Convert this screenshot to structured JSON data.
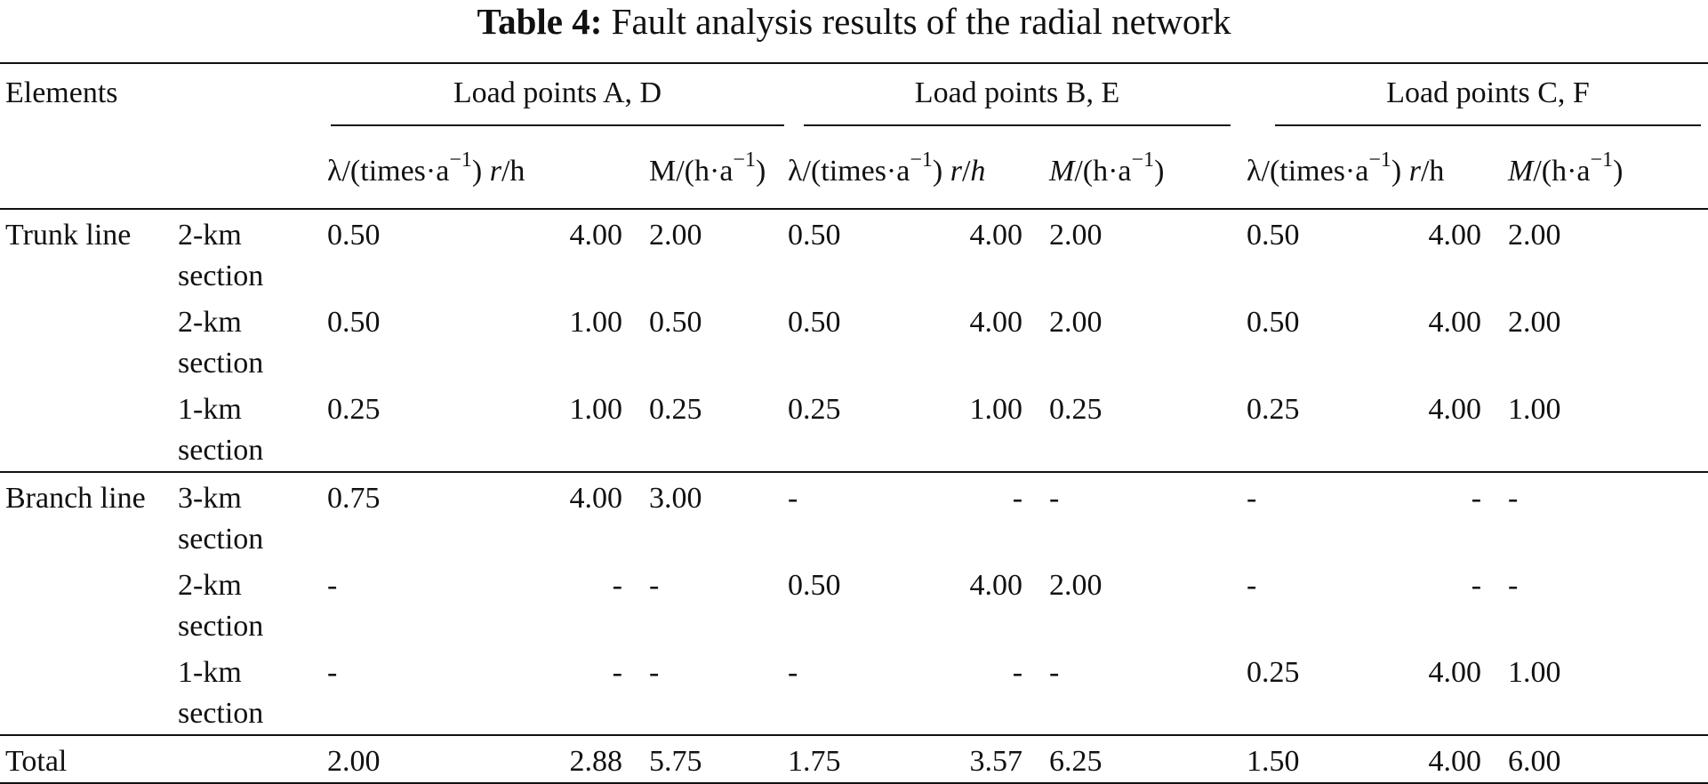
{
  "caption": {
    "label": "Table 4:",
    "text": "Fault analysis results of the radial network"
  },
  "header": {
    "elements": "Elements",
    "groups": [
      "Load points A, D",
      "Load points B, E",
      "Load points C, F"
    ],
    "sub": {
      "lambda_base": "λ/(times·a",
      "exp": "−1",
      "close": ")",
      "r": "r",
      "r_unit": "/h",
      "m": "M",
      "m_unit": "/(h·a",
      "h_italic": "h"
    }
  },
  "sections": [
    {
      "name": "Trunk line",
      "rows": [
        {
          "element": "2-km section",
          "values": [
            "0.50",
            "4.00",
            "2.00",
            "0.50",
            "4.00",
            "2.00",
            "0.50",
            "4.00",
            "2.00"
          ]
        },
        {
          "element": "2-km section",
          "values": [
            "0.50",
            "1.00",
            "0.50",
            "0.50",
            "4.00",
            "2.00",
            "0.50",
            "4.00",
            "2.00"
          ]
        },
        {
          "element": "1-km section",
          "values": [
            "0.25",
            "1.00",
            "0.25",
            "0.25",
            "1.00",
            "0.25",
            "0.25",
            "4.00",
            "1.00"
          ]
        }
      ]
    },
    {
      "name": "Branch line",
      "rows": [
        {
          "element": "3-km section",
          "values": [
            "0.75",
            "4.00",
            "3.00",
            "-",
            "-",
            "-",
            "-",
            "-",
            "-"
          ]
        },
        {
          "element": "2-km section",
          "values": [
            "-",
            "-",
            "-",
            "0.50",
            "4.00",
            "2.00",
            "-",
            "-",
            "-"
          ]
        },
        {
          "element": "1-km section",
          "values": [
            "-",
            "-",
            "-",
            "-",
            "-",
            "-",
            "0.25",
            "4.00",
            "1.00"
          ]
        }
      ]
    }
  ],
  "total": {
    "label": "Total",
    "values": [
      "2.00",
      "2.88",
      "5.75",
      "1.75",
      "3.57",
      "6.25",
      "1.50",
      "4.00",
      "6.00"
    ]
  }
}
